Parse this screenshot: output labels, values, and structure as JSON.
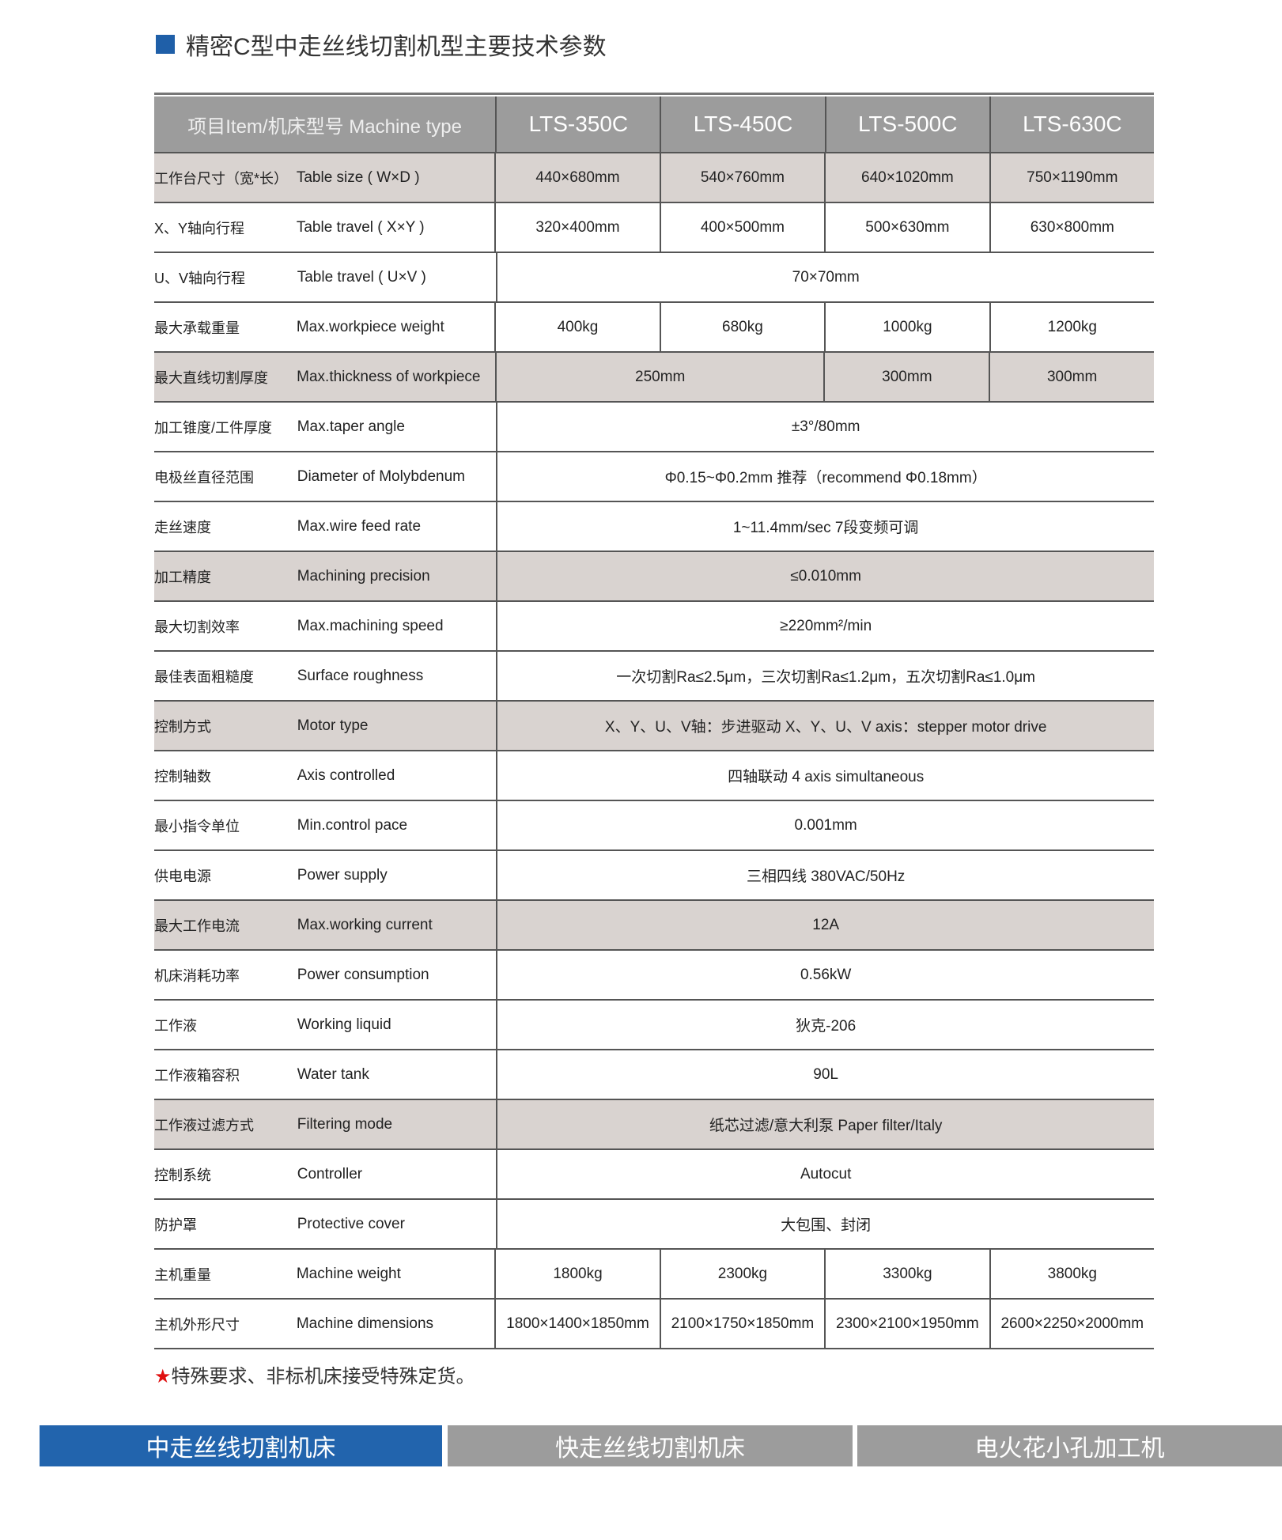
{
  "title": "精密C型中走丝线切割机型主要技术参数",
  "header": {
    "label": "项目Item/机床型号 Machine type",
    "models": [
      "LTS-350C",
      "LTS-450C",
      "LTS-500C",
      "LTS-630C"
    ]
  },
  "rows": [
    {
      "cn": "工作台尺寸（宽*长）",
      "en": "Table size ( W×D )",
      "shaded": true,
      "cells": [
        {
          "v": "440×680mm",
          "span": 1
        },
        {
          "v": "540×760mm",
          "span": 1
        },
        {
          "v": "640×1020mm",
          "span": 1
        },
        {
          "v": "750×1190mm",
          "span": 1
        }
      ]
    },
    {
      "cn": "X、Y轴向行程",
      "en": "Table travel ( X×Y )",
      "shaded": false,
      "cells": [
        {
          "v": "320×400mm",
          "span": 1
        },
        {
          "v": "400×500mm",
          "span": 1
        },
        {
          "v": "500×630mm",
          "span": 1
        },
        {
          "v": "630×800mm",
          "span": 1
        }
      ]
    },
    {
      "cn": "U、V轴向行程",
      "en": "Table travel ( U×V )",
      "shaded": false,
      "cells": [
        {
          "v": "70×70mm",
          "span": 4
        }
      ]
    },
    {
      "cn": "最大承载重量",
      "en": "Max.workpiece weight",
      "shaded": false,
      "cells": [
        {
          "v": "400kg",
          "span": 1
        },
        {
          "v": "680kg",
          "span": 1
        },
        {
          "v": "1000kg",
          "span": 1
        },
        {
          "v": "1200kg",
          "span": 1
        }
      ]
    },
    {
      "cn": "最大直线切割厚度",
      "en": "Max.thickness of workpiece",
      "shaded": true,
      "cells": [
        {
          "v": "250mm",
          "span": 2
        },
        {
          "v": "300mm",
          "span": 1
        },
        {
          "v": "300mm",
          "span": 1
        }
      ]
    },
    {
      "cn": "加工锥度/工件厚度",
      "en": "Max.taper angle",
      "shaded": false,
      "cells": [
        {
          "v": "±3°/80mm",
          "span": 4
        }
      ]
    },
    {
      "cn": "电极丝直径范围",
      "en": "Diameter of Molybdenum",
      "shaded": false,
      "cells": [
        {
          "v": "Φ0.15~Φ0.2mm 推荐（recommend Φ0.18mm）",
          "span": 4
        }
      ]
    },
    {
      "cn": "走丝速度",
      "en": "Max.wire feed rate",
      "shaded": false,
      "cells": [
        {
          "v": "1~11.4mm/sec 7段变频可调",
          "span": 4
        }
      ]
    },
    {
      "cn": "加工精度",
      "en": "Machining precision",
      "shaded": true,
      "cells": [
        {
          "v": "≤0.010mm",
          "span": 4
        }
      ]
    },
    {
      "cn": "最大切割效率",
      "en": "Max.machining speed",
      "shaded": false,
      "cells": [
        {
          "v": "≥220mm²/min",
          "span": 4
        }
      ]
    },
    {
      "cn": "最佳表面粗糙度",
      "en": "Surface roughness",
      "shaded": false,
      "cells": [
        {
          "v": "一次切割Ra≤2.5μm，三次切割Ra≤1.2μm，五次切割Ra≤1.0μm",
          "span": 4
        }
      ]
    },
    {
      "cn": "控制方式",
      "en": "Motor type",
      "shaded": true,
      "cells": [
        {
          "v": "X、Y、U、V轴：步进驱动 X、Y、U、V axis：stepper motor drive",
          "span": 4
        }
      ]
    },
    {
      "cn": "控制轴数",
      "en": "Axis controlled",
      "shaded": false,
      "cells": [
        {
          "v": "四轴联动 4 axis simultaneous",
          "span": 4
        }
      ]
    },
    {
      "cn": "最小指令单位",
      "en": "Min.control pace",
      "shaded": false,
      "cells": [
        {
          "v": "0.001mm",
          "span": 4
        }
      ]
    },
    {
      "cn": "供电电源",
      "en": "Power supply",
      "shaded": false,
      "cells": [
        {
          "v": "三相四线 380VAC/50Hz",
          "span": 4
        }
      ]
    },
    {
      "cn": "最大工作电流",
      "en": "Max.working current",
      "shaded": true,
      "cells": [
        {
          "v": "12A",
          "span": 4
        }
      ]
    },
    {
      "cn": "机床消耗功率",
      "en": "Power consumption",
      "shaded": false,
      "cells": [
        {
          "v": "0.56kW",
          "span": 4
        }
      ]
    },
    {
      "cn": "工作液",
      "en": "Working liquid",
      "shaded": false,
      "cells": [
        {
          "v": "狄克-206",
          "span": 4
        }
      ]
    },
    {
      "cn": "工作液箱容积",
      "en": "Water tank",
      "shaded": false,
      "cells": [
        {
          "v": "90L",
          "span": 4
        }
      ]
    },
    {
      "cn": "工作液过滤方式",
      "en": "Filtering mode",
      "shaded": true,
      "cells": [
        {
          "v": "纸芯过滤/意大利泵 Paper filter/Italy",
          "span": 4
        }
      ]
    },
    {
      "cn": "控制系统",
      "en": "Controller",
      "shaded": false,
      "cells": [
        {
          "v": "Autocut",
          "span": 4
        }
      ]
    },
    {
      "cn": "防护罩",
      "en": "Protective cover",
      "shaded": false,
      "cells": [
        {
          "v": "大包围、封闭",
          "span": 4
        }
      ]
    },
    {
      "cn": "主机重量",
      "en": "Machine weight",
      "shaded": false,
      "cells": [
        {
          "v": "1800kg",
          "span": 1
        },
        {
          "v": "2300kg",
          "span": 1
        },
        {
          "v": "3300kg",
          "span": 1
        },
        {
          "v": "3800kg",
          "span": 1
        }
      ]
    },
    {
      "cn": "主机外形尺寸",
      "en": "Machine dimensions",
      "shaded": false,
      "cells": [
        {
          "v": "1800×1400×1850mm",
          "span": 1
        },
        {
          "v": "2100×1750×1850mm",
          "span": 1
        },
        {
          "v": "2300×2100×1950mm",
          "span": 1
        },
        {
          "v": "2600×2250×2000mm",
          "span": 1
        }
      ]
    }
  ],
  "note": {
    "star": "★",
    "text": "特殊要求、非标机床接受特殊定货。"
  },
  "tabs": [
    {
      "label": "中走丝线切割机床",
      "color": "#2264ad"
    },
    {
      "label": "快走丝线切割机床",
      "color": "#9c9c9c"
    },
    {
      "label": "电火花小孔加工机",
      "color": "#9c9c9c"
    }
  ]
}
